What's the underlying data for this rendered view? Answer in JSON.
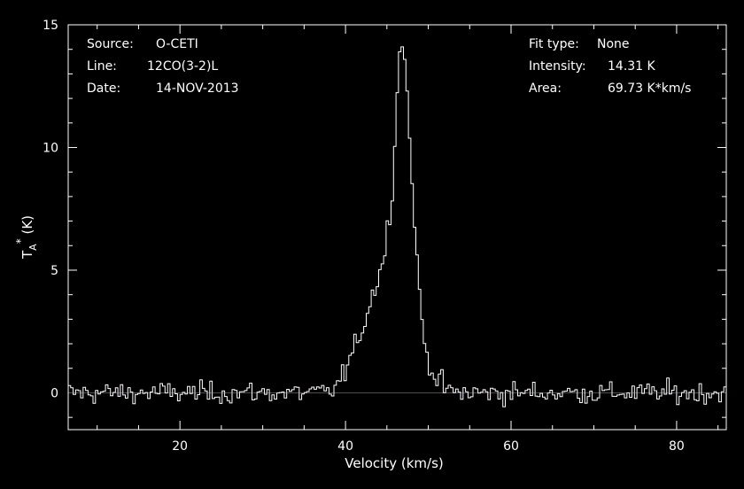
{
  "info_left": [
    {
      "key": "Source:",
      "value": "O-CETI"
    },
    {
      "key": "Line:",
      "value": "12CO(3-2)L"
    },
    {
      "key": "Date:",
      "value": "14-NOV-2013"
    }
  ],
  "info_right": [
    {
      "key": "Fit type:",
      "value": "None"
    },
    {
      "key": "Intensity:",
      "value": "14.31 K"
    },
    {
      "key": "Area:",
      "value": "69.73 K*km/s"
    }
  ],
  "colors": {
    "background": "#000000",
    "axes": "#ffffff",
    "spectrum": "#ffffff",
    "baseline": "#ff0000"
  },
  "chart_data": {
    "type": "line",
    "step": true,
    "xlabel": "Velocity (km/s)",
    "ylabel": {
      "main": "T",
      "sub": "A",
      "sup": "*",
      "unit": " (K)"
    },
    "xlim": [
      6.5,
      86
    ],
    "ylim": [
      -1.5,
      15
    ],
    "xticks": [
      20,
      40,
      60,
      80
    ],
    "yticks": [
      0,
      5,
      10,
      15
    ],
    "baseline_y": 0,
    "peak_channel_width_kms": 0.3,
    "peak_profile": [
      [
        38.0,
        0.0
      ],
      [
        39.0,
        0.3
      ],
      [
        40.0,
        0.9
      ],
      [
        41.0,
        1.7
      ],
      [
        42.0,
        2.6
      ],
      [
        43.0,
        3.7
      ],
      [
        44.0,
        4.8
      ],
      [
        44.6,
        5.4
      ],
      [
        45.0,
        6.5
      ],
      [
        45.6,
        8.0
      ],
      [
        46.0,
        10.3
      ],
      [
        46.3,
        12.8
      ],
      [
        46.6,
        14.3
      ],
      [
        47.0,
        14.0
      ],
      [
        47.4,
        12.7
      ],
      [
        47.8,
        10.0
      ],
      [
        48.2,
        7.8
      ],
      [
        48.6,
        5.8
      ],
      [
        49.0,
        3.6
      ],
      [
        49.5,
        2.2
      ],
      [
        50.0,
        1.3
      ],
      [
        51.0,
        0.6
      ],
      [
        52.0,
        0.2
      ],
      [
        53.0,
        0.0
      ]
    ],
    "noise_rms": 0.22,
    "intensity_peak": 14.31,
    "area": 69.73
  }
}
